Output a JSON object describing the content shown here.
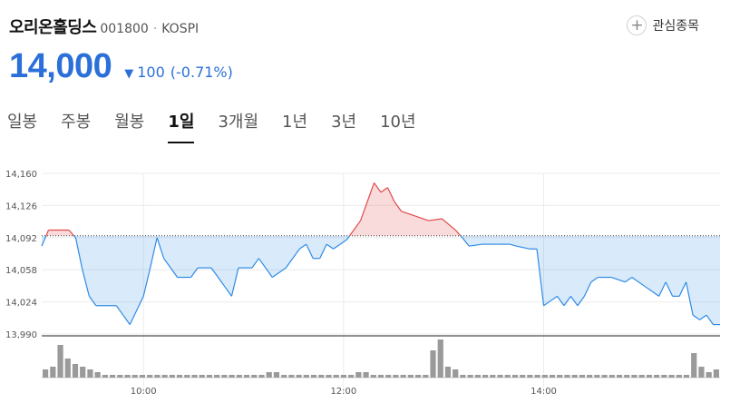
{
  "stock": {
    "name": "오리온홀딩스",
    "code": "001800",
    "separator": "·",
    "market": "KOSPI"
  },
  "watch_button": {
    "icon": "plus-icon",
    "label": "관심종목"
  },
  "price": {
    "current": "14,000",
    "direction": "down",
    "change": "100",
    "change_pct": "(-0.71%)",
    "color": "#2b6fd9"
  },
  "tabs": [
    {
      "label": "일봉",
      "active": false
    },
    {
      "label": "주봉",
      "active": false
    },
    {
      "label": "월봉",
      "active": false
    },
    {
      "label": "1일",
      "active": true
    },
    {
      "label": "3개월",
      "active": false
    },
    {
      "label": "1년",
      "active": false
    },
    {
      "label": "3년",
      "active": false
    },
    {
      "label": "10년",
      "active": false
    }
  ],
  "chart_data": {
    "type": "area",
    "baseline": 14094,
    "y_ticks": [
      "14,160",
      "14,126",
      "14,092",
      "14,058",
      "14,024",
      "13,990"
    ],
    "ylim": [
      13990,
      14160
    ],
    "x_ticks": [
      "10:00",
      "12:00",
      "14:00"
    ],
    "up_color": "#e14a4a",
    "down_color": "#2f8be6",
    "price_series": [
      [
        0.0,
        14083
      ],
      [
        0.01,
        14100
      ],
      [
        0.04,
        14100
      ],
      [
        0.05,
        14092
      ],
      [
        0.06,
        14058
      ],
      [
        0.07,
        14030
      ],
      [
        0.08,
        14020
      ],
      [
        0.11,
        14020
      ],
      [
        0.12,
        14010
      ],
      [
        0.13,
        14000
      ],
      [
        0.14,
        14015
      ],
      [
        0.15,
        14030
      ],
      [
        0.16,
        14060
      ],
      [
        0.17,
        14092
      ],
      [
        0.18,
        14070
      ],
      [
        0.19,
        14060
      ],
      [
        0.2,
        14050
      ],
      [
        0.22,
        14050
      ],
      [
        0.23,
        14060
      ],
      [
        0.25,
        14060
      ],
      [
        0.26,
        14050
      ],
      [
        0.27,
        14040
      ],
      [
        0.28,
        14030
      ],
      [
        0.29,
        14060
      ],
      [
        0.31,
        14060
      ],
      [
        0.32,
        14070
      ],
      [
        0.34,
        14050
      ],
      [
        0.36,
        14060
      ],
      [
        0.38,
        14080
      ],
      [
        0.39,
        14085
      ],
      [
        0.4,
        14070
      ],
      [
        0.41,
        14070
      ],
      [
        0.42,
        14085
      ],
      [
        0.43,
        14080
      ],
      [
        0.44,
        14085
      ],
      [
        0.45,
        14090
      ],
      [
        0.46,
        14100
      ],
      [
        0.47,
        14110
      ],
      [
        0.48,
        14130
      ],
      [
        0.49,
        14150
      ],
      [
        0.5,
        14140
      ],
      [
        0.51,
        14145
      ],
      [
        0.52,
        14130
      ],
      [
        0.53,
        14120
      ],
      [
        0.55,
        14115
      ],
      [
        0.57,
        14110
      ],
      [
        0.59,
        14112
      ],
      [
        0.61,
        14100
      ],
      [
        0.62,
        14092
      ],
      [
        0.63,
        14083
      ],
      [
        0.65,
        14085
      ],
      [
        0.67,
        14085
      ],
      [
        0.69,
        14085
      ],
      [
        0.7,
        14083
      ],
      [
        0.72,
        14080
      ],
      [
        0.73,
        14080
      ],
      [
        0.74,
        14020
      ],
      [
        0.75,
        14025
      ],
      [
        0.76,
        14030
      ],
      [
        0.77,
        14020
      ],
      [
        0.78,
        14030
      ],
      [
        0.79,
        14020
      ],
      [
        0.8,
        14030
      ],
      [
        0.81,
        14045
      ],
      [
        0.82,
        14050
      ],
      [
        0.84,
        14050
      ],
      [
        0.86,
        14045
      ],
      [
        0.87,
        14050
      ],
      [
        0.89,
        14040
      ],
      [
        0.9,
        14035
      ],
      [
        0.91,
        14030
      ],
      [
        0.92,
        14045
      ],
      [
        0.93,
        14030
      ],
      [
        0.94,
        14030
      ],
      [
        0.95,
        14045
      ],
      [
        0.96,
        14010
      ],
      [
        0.97,
        14005
      ],
      [
        0.98,
        14010
      ],
      [
        0.99,
        14000
      ],
      [
        1.0,
        14000
      ]
    ],
    "volume_series": [
      3,
      4,
      12,
      7,
      5,
      4,
      3,
      2,
      1,
      1,
      1,
      1,
      1,
      1,
      1,
      1,
      1,
      1,
      1,
      1,
      1,
      1,
      1,
      1,
      1,
      1,
      1,
      1,
      1,
      1,
      2,
      2,
      1,
      1,
      1,
      1,
      1,
      1,
      1,
      1,
      1,
      1,
      2,
      2,
      1,
      1,
      1,
      1,
      1,
      1,
      1,
      1,
      10,
      14,
      4,
      3,
      1,
      1,
      1,
      1,
      1,
      1,
      1,
      1,
      1,
      1,
      1,
      1,
      1,
      1,
      1,
      1,
      1,
      1,
      1,
      1,
      1,
      1,
      1,
      1,
      1,
      1,
      1,
      1,
      1,
      1,
      1,
      9,
      4,
      2,
      3
    ]
  }
}
